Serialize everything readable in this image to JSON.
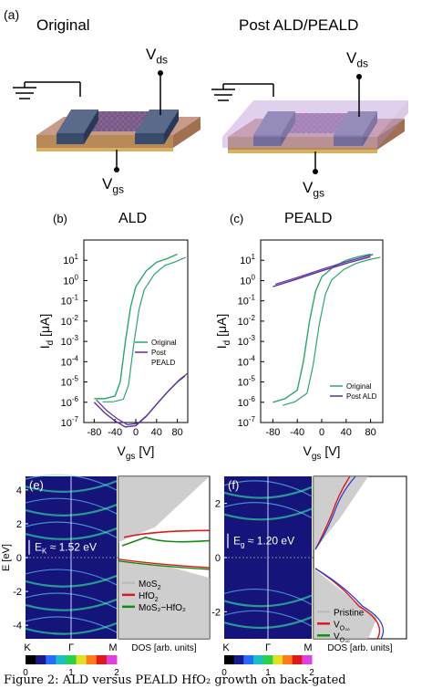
{
  "panel_a": {
    "label": "(a)",
    "left_title": "Original",
    "right_title": "Post ALD/PEALD",
    "vds": "V",
    "vds_sub": "ds",
    "vgs": "V",
    "vgs_sub": "gs"
  },
  "panel_b": {
    "label": "(b)",
    "title": "ALD",
    "legend": [
      "Original",
      "Post",
      "PEALD"
    ]
  },
  "panel_c": {
    "label": "(c)",
    "title": "PEALD",
    "legend": [
      "Original",
      "Post ALD"
    ]
  },
  "transfer_axes": {
    "ylabel": "I",
    "ylabel_sub": "d",
    "ylabel_unit": " [μA]",
    "xlabel": "V",
    "xlabel_sub": "gs",
    "xlabel_unit": " [V]",
    "y_ticks": [
      "10",
      "10",
      "10",
      "10",
      "10",
      "10",
      "10",
      "10",
      "10"
    ],
    "y_exps": [
      "1",
      "0",
      "-1",
      "-2",
      "-3",
      "-4",
      "-5",
      "-6",
      "-7"
    ],
    "x_ticks": [
      "-80",
      "-40",
      "0",
      "40",
      "80"
    ]
  },
  "panel_e": {
    "label": "(e)",
    "gap_text": "E",
    "gap_sub": "K",
    "gap_value": " ≈ 1.52 eV",
    "y_ticks": [
      "4",
      "2",
      "0",
      "-2",
      "-4"
    ],
    "ylabel": "E [eV]",
    "k_labels": [
      "K",
      "Γ",
      "M"
    ],
    "dos_label": "DOS [arb. units]",
    "legend": [
      "MoS",
      "HfO",
      "MoS₂−HfO₂"
    ],
    "legend_sub": [
      "2",
      "2",
      ""
    ]
  },
  "panel_f": {
    "label": "(f)",
    "gap_text": "E",
    "gap_sub": "g",
    "gap_value": " ≈ 1.20 eV",
    "y_ticks": [
      "2",
      "0",
      "-2"
    ],
    "k_labels": [
      "K",
      "Γ",
      "M"
    ],
    "dos_label": "DOS [arb. units]",
    "legend": [
      "Pristine",
      "V",
      "V"
    ],
    "legend_sub": [
      "",
      "O₃ₒ",
      "O₄ₒ"
    ]
  },
  "colorbar": {
    "ticks": [
      "0",
      "1",
      "2"
    ]
  },
  "caption": "Figure 2: ALD versus PEALD HfO₂ growth on back-gated",
  "colors": {
    "green": "#2ca66b",
    "purple": "#5a2d9e",
    "red": "#e01818",
    "dark_green": "#138a13",
    "gray": "#bdbdbd",
    "band_bg": "#14147a"
  },
  "chart_data": [
    {
      "type": "line",
      "title": "ALD",
      "xlabel": "Vgs [V]",
      "ylabel": "Id [μA]",
      "xlim": [
        -100,
        100
      ],
      "ylim": [
        1e-07,
        100
      ],
      "yscale": "log",
      "series": [
        {
          "name": "Original",
          "x": [
            -80,
            -60,
            -40,
            -30,
            -25,
            -20,
            -10,
            0,
            20,
            40,
            60,
            80
          ],
          "y": [
            1.5e-06,
            1.5e-06,
            2e-06,
            1e-05,
            0.0001,
            0.001,
            0.05,
            0.5,
            3,
            8,
            12,
            20
          ]
        },
        {
          "name": "Post PEALD",
          "x": [
            -80,
            -60,
            -40,
            -20,
            0,
            20,
            40,
            60,
            80,
            95
          ],
          "y": [
            1e-06,
            3e-07,
            1.2e-07,
            6e-08,
            7e-08,
            2e-07,
            8e-07,
            3e-06,
            1e-05,
            2e-05
          ]
        }
      ]
    },
    {
      "type": "line",
      "title": "PEALD",
      "xlabel": "Vgs [V]",
      "ylabel": "Id [μA]",
      "xlim": [
        -100,
        100
      ],
      "ylim": [
        1e-07,
        100
      ],
      "yscale": "log",
      "series": [
        {
          "name": "Original",
          "x": [
            -80,
            -60,
            -40,
            -30,
            -20,
            -10,
            0,
            20,
            40,
            60,
            80
          ],
          "y": [
            1e-06,
            1.5e-06,
            4e-06,
            0.0001,
            0.01,
            0.3,
            1.5,
            5,
            10,
            15,
            20
          ]
        },
        {
          "name": "Post ALD",
          "x": [
            -80,
            -40,
            0,
            40,
            80
          ],
          "y": [
            0.5,
            1.2,
            3,
            7,
            15
          ]
        }
      ]
    }
  ]
}
